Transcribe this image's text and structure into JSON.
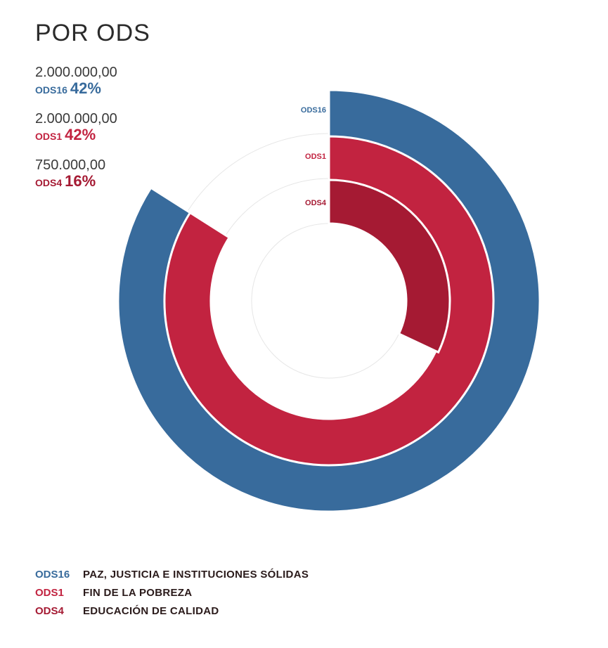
{
  "title": "POR ODS",
  "summary": [
    {
      "amount": "2.000.000,00",
      "code": "ODS16",
      "percent": "42%",
      "color": "#386b9c"
    },
    {
      "amount": "2.000.000,00",
      "code": "ODS1",
      "percent": "42%",
      "color": "#c22340"
    },
    {
      "amount": "750.000,00",
      "code": "ODS4",
      "percent": "16%",
      "color": "#a51a33"
    }
  ],
  "legend": [
    {
      "code": "ODS16",
      "text": "PAZ, JUSTICIA E INSTITUCIONES SÓLIDAS",
      "color": "#386b9c"
    },
    {
      "code": "ODS1",
      "text": "FIN DE LA POBREZA",
      "color": "#c22340"
    },
    {
      "code": "ODS4",
      "text": "EDUCACIÓN DE CALIDAD",
      "color": "#a51a33"
    }
  ],
  "chart_data": {
    "type": "radial-bar",
    "title": "POR ODS",
    "series": [
      {
        "name": "ODS16",
        "value": 2000000,
        "percent": 42,
        "color": "#386b9c"
      },
      {
        "name": "ODS1",
        "value": 2000000,
        "percent": 42,
        "color": "#c22340"
      },
      {
        "name": "ODS4",
        "value": 750000,
        "percent": 16,
        "color": "#a51a33"
      }
    ],
    "scale_max": 50,
    "grid": true
  }
}
